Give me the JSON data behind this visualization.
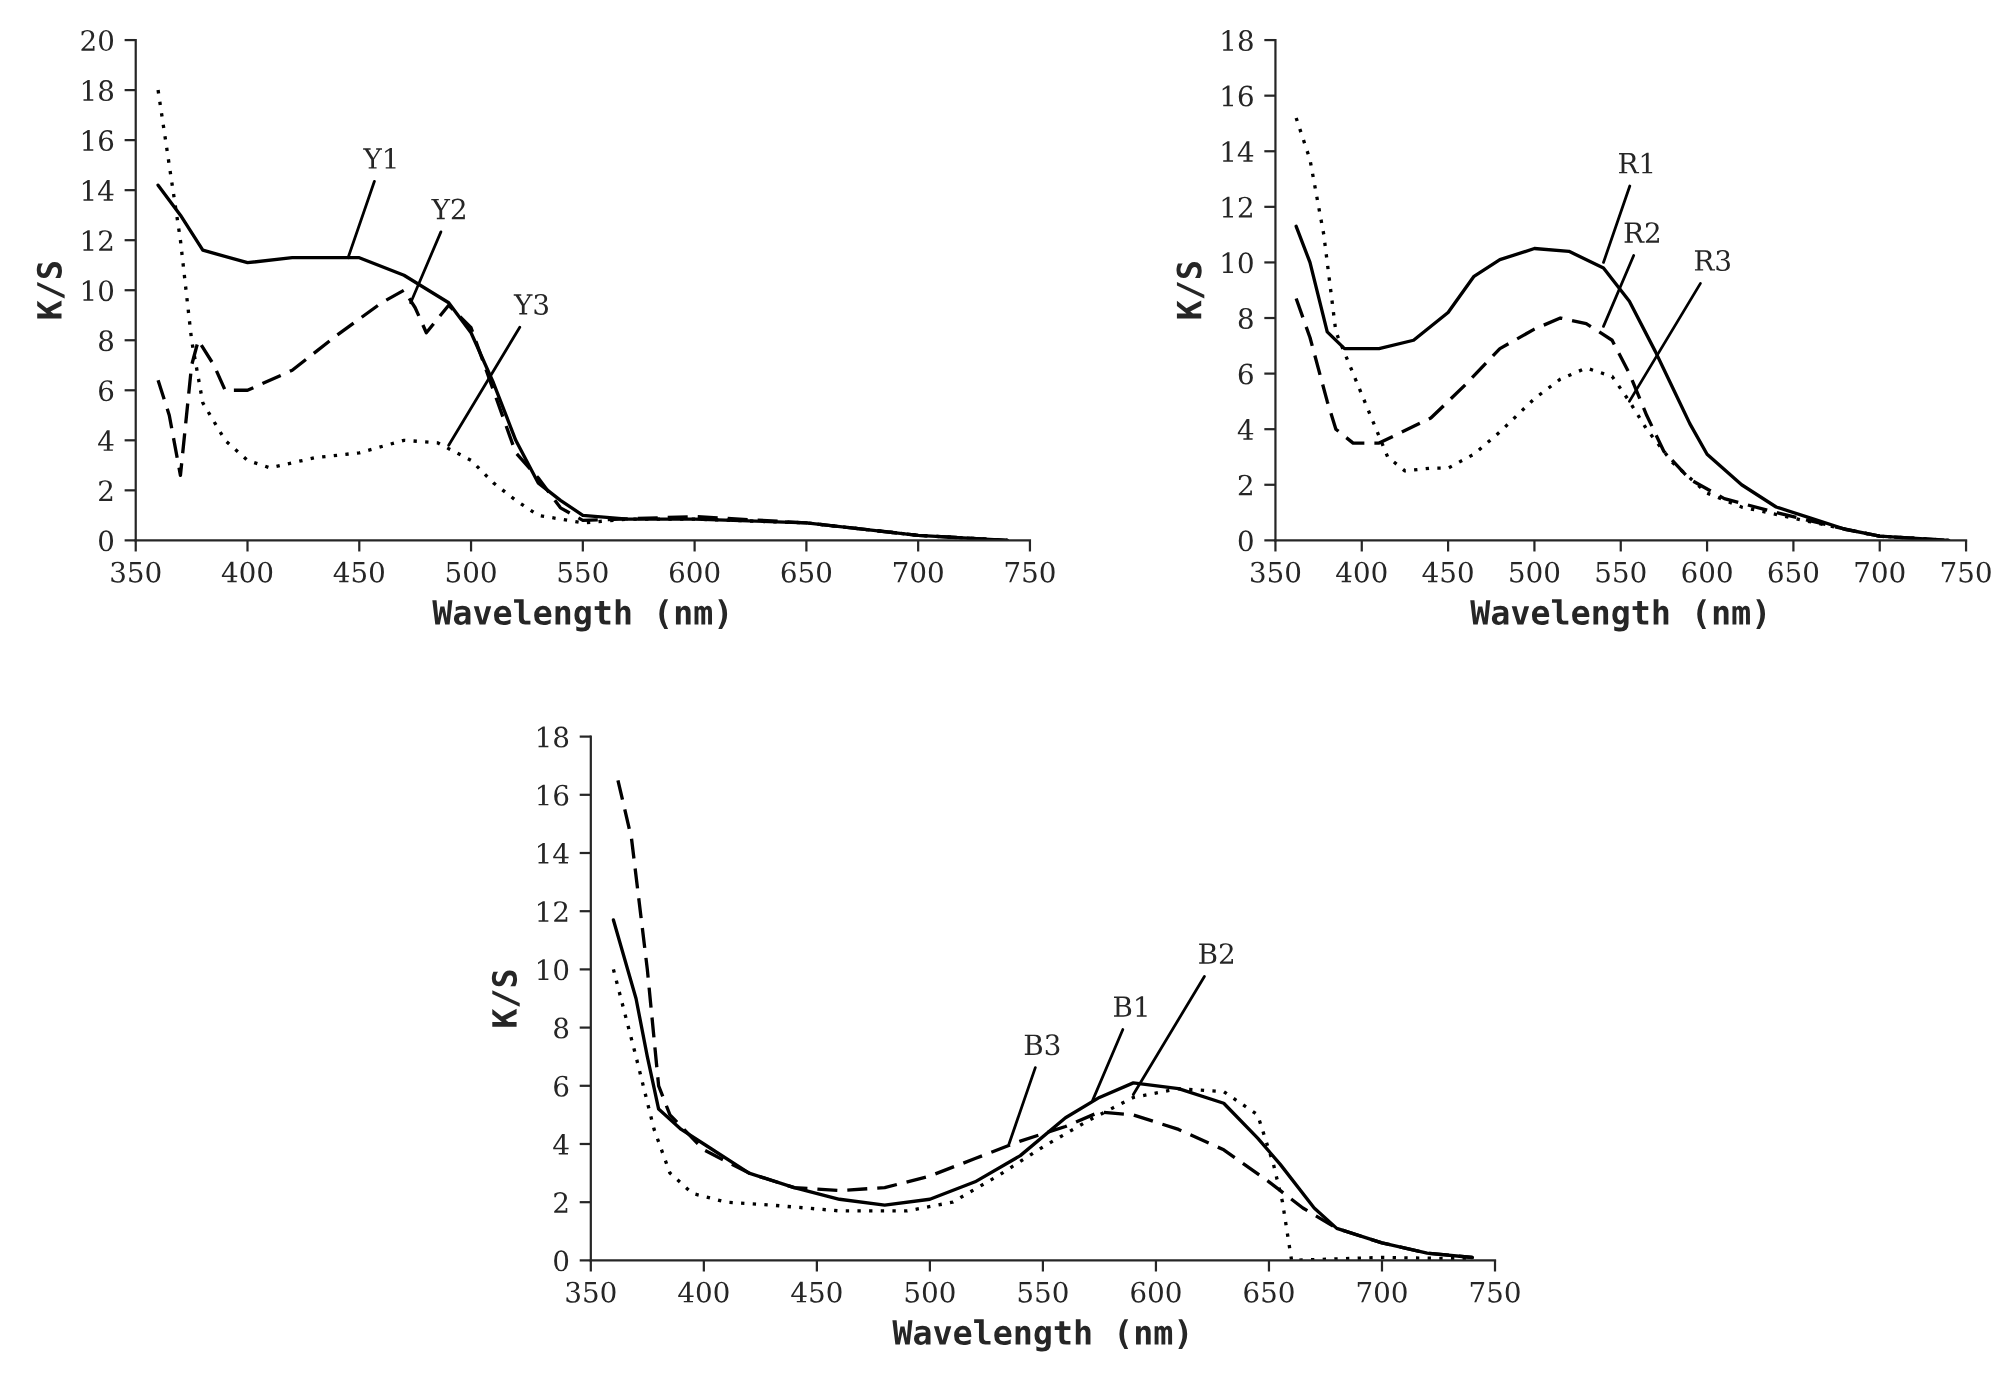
{
  "chart_data": [
    {
      "type": "line",
      "xlabel": "Wavelength (nm)",
      "ylabel": "K/S",
      "xlim": [
        350,
        750
      ],
      "ylim": [
        0,
        20
      ],
      "xticks": [
        350,
        400,
        450,
        500,
        550,
        600,
        650,
        700,
        750
      ],
      "yticks": [
        0,
        2,
        4,
        6,
        8,
        10,
        12,
        14,
        16,
        18,
        20
      ],
      "series": [
        {
          "color": "#000000",
          "line_style": "solid",
          "x": [
            360,
            370,
            380,
            400,
            420,
            450,
            470,
            490,
            500,
            510,
            520,
            530,
            540,
            550,
            570,
            600,
            650,
            700,
            740
          ],
          "values": [
            14.2,
            13,
            11.6,
            11.1,
            11.3,
            11.3,
            10.6,
            9.5,
            8.3,
            6.3,
            4,
            2.3,
            1.6,
            1.0,
            0.85,
            0.85,
            0.7,
            0.2,
            0
          ]
        },
        {
          "color": "#000000",
          "line_style": "dashed",
          "x": [
            360,
            365,
            370,
            375,
            378,
            385,
            390,
            400,
            420,
            440,
            460,
            470,
            475,
            480,
            490,
            500,
            510,
            520,
            530,
            540,
            550,
            600,
            650,
            700,
            740
          ],
          "values": [
            6.4,
            5,
            2.6,
            7,
            8,
            7,
            6,
            6,
            6.8,
            8.2,
            9.5,
            10,
            9.3,
            8.3,
            9.4,
            8.5,
            6,
            3.5,
            2.5,
            1.3,
            0.8,
            0.95,
            0.7,
            0.2,
            0
          ]
        },
        {
          "color": "#000000",
          "line_style": "dotted",
          "x": [
            360,
            365,
            370,
            375,
            380,
            390,
            400,
            410,
            430,
            450,
            470,
            485,
            500,
            510,
            520,
            530,
            550,
            570,
            600,
            650,
            700,
            740
          ],
          "values": [
            18,
            15,
            12,
            8,
            5.5,
            4,
            3.2,
            2.9,
            3.3,
            3.5,
            4,
            3.9,
            3.2,
            2.3,
            1.6,
            1.0,
            0.7,
            0.85,
            0.85,
            0.7,
            0.2,
            0
          ]
        }
      ],
      "annotations": [
        {
          "text": "Y1",
          "x": 445,
          "y": 11.3
        },
        {
          "text": "Y2",
          "x": 473,
          "y": 9.5
        },
        {
          "text": "Y3",
          "x": 490,
          "y": 3.8
        }
      ]
    },
    {
      "type": "line",
      "xlabel": "Wavelength (nm)",
      "ylabel": "K/S",
      "xlim": [
        350,
        750
      ],
      "ylim": [
        0,
        18
      ],
      "xticks": [
        350,
        400,
        450,
        500,
        550,
        600,
        650,
        700,
        750
      ],
      "yticks": [
        0,
        2,
        4,
        6,
        8,
        10,
        12,
        14,
        16,
        18
      ],
      "series": [
        {
          "color": "#000000",
          "line_style": "solid",
          "x": [
            362,
            370,
            380,
            390,
            410,
            430,
            450,
            465,
            480,
            500,
            520,
            540,
            555,
            570,
            580,
            590,
            600,
            620,
            640,
            660,
            680,
            700,
            740
          ],
          "values": [
            11.3,
            10,
            7.5,
            6.9,
            6.9,
            7.2,
            8.2,
            9.5,
            10.1,
            10.5,
            10.4,
            9.8,
            8.6,
            6.8,
            5.5,
            4.2,
            3.1,
            2,
            1.2,
            0.8,
            0.4,
            0.15,
            0
          ]
        },
        {
          "color": "#000000",
          "line_style": "dashed",
          "x": [
            362,
            370,
            380,
            385,
            395,
            410,
            420,
            440,
            460,
            480,
            500,
            515,
            530,
            545,
            555,
            565,
            575,
            590,
            610,
            640,
            660,
            680,
            700,
            740
          ],
          "values": [
            8.7,
            7.3,
            5,
            4,
            3.5,
            3.5,
            3.8,
            4.4,
            5.6,
            6.9,
            7.6,
            8,
            7.8,
            7.2,
            6,
            4.5,
            3.2,
            2.2,
            1.5,
            1.0,
            0.7,
            0.4,
            0.15,
            0
          ]
        },
        {
          "color": "#000000",
          "line_style": "dotted",
          "x": [
            362,
            370,
            378,
            385,
            395,
            405,
            415,
            425,
            440,
            450,
            465,
            480,
            500,
            515,
            530,
            545,
            555,
            565,
            580,
            600,
            620,
            650,
            680,
            700,
            740
          ],
          "values": [
            15.2,
            13.7,
            11,
            7.5,
            6,
            4.5,
            3,
            2.5,
            2.6,
            2.6,
            3.1,
            3.9,
            5.1,
            5.8,
            6.2,
            5.9,
            5,
            4,
            2.8,
            1.7,
            1.2,
            0.8,
            0.4,
            0.15,
            0
          ]
        }
      ],
      "annotations": [
        {
          "text": "R1",
          "x": 540,
          "y": 10
        },
        {
          "text": "R2",
          "x": 540,
          "y": 7.7
        },
        {
          "text": "R3",
          "x": 555,
          "y": 5
        }
      ]
    },
    {
      "type": "line",
      "xlabel": "Wavelength (nm)",
      "ylabel": "K/S",
      "xlim": [
        350,
        750
      ],
      "ylim": [
        0,
        18
      ],
      "xticks": [
        350,
        400,
        450,
        500,
        550,
        600,
        650,
        700,
        750
      ],
      "yticks": [
        0,
        2,
        4,
        6,
        8,
        10,
        12,
        14,
        16,
        18
      ],
      "series": [
        {
          "color": "#000000",
          "line_style": "solid",
          "x": [
            360,
            370,
            375,
            380,
            390,
            400,
            420,
            440,
            460,
            480,
            500,
            520,
            540,
            560,
            575,
            590,
            610,
            630,
            645,
            655,
            670,
            680,
            700,
            720,
            740
          ],
          "values": [
            11.7,
            9,
            7,
            5.2,
            4.5,
            4,
            3,
            2.5,
            2.1,
            1.9,
            2.1,
            2.7,
            3.6,
            4.9,
            5.6,
            6.1,
            5.9,
            5.4,
            4.2,
            3.3,
            1.8,
            1.1,
            0.6,
            0.25,
            0.1
          ]
        },
        {
          "color": "#000000",
          "line_style": "dotted",
          "x": [
            360,
            370,
            378,
            385,
            395,
            410,
            430,
            460,
            490,
            510,
            530,
            550,
            570,
            590,
            610,
            630,
            645,
            652,
            656,
            660,
            700,
            740
          ],
          "values": [
            10,
            7,
            4.5,
            3,
            2.3,
            2,
            1.9,
            1.7,
            1.7,
            2.0,
            2.9,
            3.9,
            4.8,
            5.6,
            5.9,
            5.8,
            5,
            3.3,
            2,
            0,
            0.1,
            0.05
          ]
        },
        {
          "color": "#000000",
          "line_style": "dashed",
          "x": [
            362,
            368,
            375,
            380,
            385,
            400,
            420,
            440,
            460,
            480,
            500,
            520,
            540,
            560,
            575,
            590,
            610,
            630,
            650,
            665,
            680,
            700,
            720,
            740
          ],
          "values": [
            16.5,
            14.5,
            10,
            6,
            5,
            3.8,
            3,
            2.5,
            2.4,
            2.5,
            2.9,
            3.5,
            4.1,
            4.6,
            5.1,
            5.0,
            4.5,
            3.8,
            2.7,
            1.8,
            1.1,
            0.6,
            0.25,
            0.1
          ]
        }
      ],
      "annotations": [
        {
          "text": "B3",
          "x": 535,
          "y": 4.0
        },
        {
          "text": "B1",
          "x": 572,
          "y": 5.5
        },
        {
          "text": "B2",
          "x": 590,
          "y": 5.7
        }
      ]
    }
  ]
}
